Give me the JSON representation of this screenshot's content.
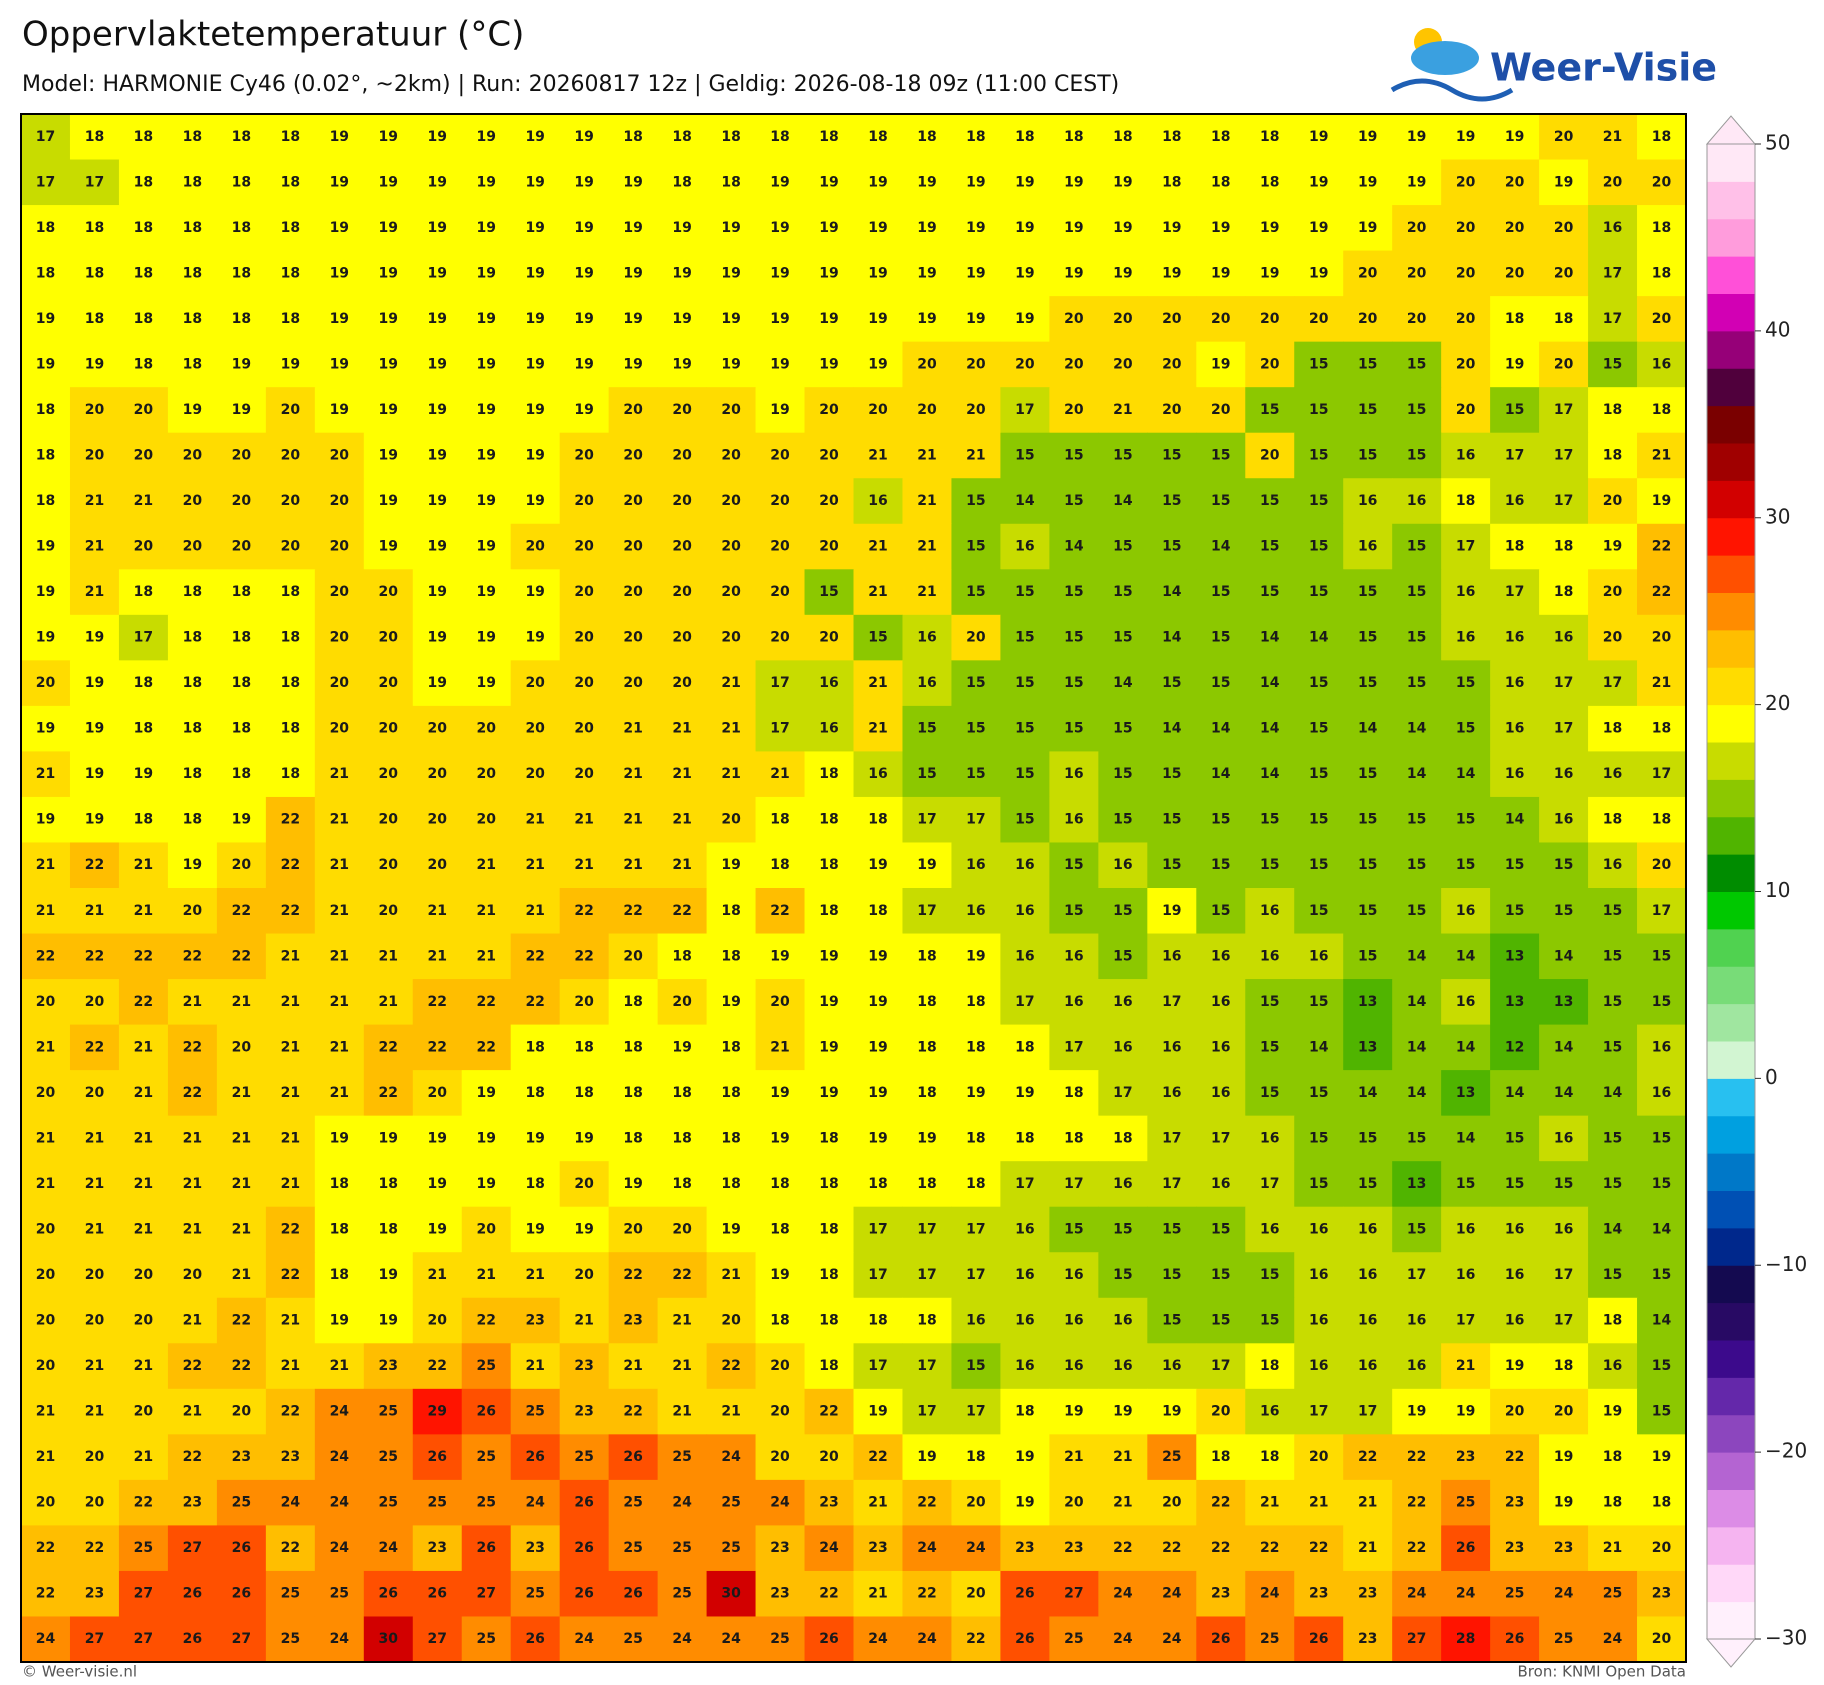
{
  "header": {
    "title": "Oppervlaktetemperatuur (°C)",
    "subtitle": "Model: HARMONIE Cy46 (0.02°, ~2km)  |  Run: 20260817 12z  |  Geldig: 2026-08-18 09z (11:00 CEST)",
    "logo": "Weer-Visie"
  },
  "map": {
    "values": [
      [
        17,
        18,
        18,
        18,
        18,
        18,
        19,
        19,
        19,
        19,
        19,
        19,
        18,
        18,
        18,
        18,
        18,
        18,
        18,
        18,
        18,
        18,
        18,
        18,
        18,
        18,
        19,
        19,
        19,
        19,
        19,
        20,
        21,
        18
      ],
      [
        17,
        17,
        18,
        18,
        18,
        18,
        19,
        19,
        19,
        19,
        19,
        19,
        19,
        18,
        18,
        19,
        19,
        19,
        19,
        19,
        19,
        19,
        19,
        18,
        18,
        18,
        19,
        19,
        19,
        20,
        20,
        19,
        20,
        20
      ],
      [
        18,
        18,
        18,
        18,
        18,
        18,
        19,
        19,
        19,
        19,
        19,
        19,
        19,
        19,
        19,
        19,
        19,
        19,
        19,
        19,
        19,
        19,
        19,
        19,
        19,
        19,
        19,
        19,
        20,
        20,
        20,
        20,
        16,
        18
      ],
      [
        18,
        18,
        18,
        18,
        18,
        18,
        19,
        19,
        19,
        19,
        19,
        19,
        19,
        19,
        19,
        19,
        19,
        19,
        19,
        19,
        19,
        19,
        19,
        19,
        19,
        19,
        19,
        20,
        20,
        20,
        20,
        20,
        17,
        18
      ],
      [
        19,
        18,
        18,
        18,
        18,
        18,
        19,
        19,
        19,
        19,
        19,
        19,
        19,
        19,
        19,
        19,
        19,
        19,
        19,
        19,
        19,
        20,
        20,
        20,
        20,
        20,
        20,
        20,
        20,
        20,
        18,
        18,
        17,
        20
      ],
      [
        19,
        19,
        18,
        18,
        19,
        19,
        19,
        19,
        19,
        19,
        19,
        19,
        19,
        19,
        19,
        19,
        19,
        19,
        20,
        20,
        20,
        20,
        20,
        20,
        19,
        20,
        15,
        15,
        15,
        20,
        19,
        20,
        15,
        16
      ],
      [
        18,
        20,
        20,
        19,
        19,
        20,
        19,
        19,
        19,
        19,
        19,
        19,
        20,
        20,
        20,
        19,
        20,
        20,
        20,
        20,
        17,
        20,
        21,
        20,
        20,
        15,
        15,
        15,
        15,
        20,
        15,
        17,
        18,
        18
      ],
      [
        18,
        20,
        20,
        20,
        20,
        20,
        20,
        19,
        19,
        19,
        19,
        20,
        20,
        20,
        20,
        20,
        20,
        21,
        21,
        21,
        15,
        15,
        15,
        15,
        15,
        20,
        15,
        15,
        15,
        16,
        17,
        17,
        18,
        21
      ],
      [
        18,
        21,
        21,
        20,
        20,
        20,
        20,
        19,
        19,
        19,
        19,
        20,
        20,
        20,
        20,
        20,
        20,
        16,
        21,
        15,
        14,
        15,
        14,
        15,
        15,
        15,
        15,
        16,
        16,
        18,
        16,
        17,
        20,
        19
      ],
      [
        19,
        21,
        20,
        20,
        20,
        20,
        20,
        19,
        19,
        19,
        20,
        20,
        20,
        20,
        20,
        20,
        20,
        21,
        21,
        15,
        16,
        14,
        15,
        15,
        14,
        15,
        15,
        16,
        15,
        17,
        18,
        18,
        19,
        22
      ],
      [
        19,
        21,
        18,
        18,
        18,
        18,
        20,
        20,
        19,
        19,
        19,
        20,
        20,
        20,
        20,
        20,
        15,
        21,
        21,
        15,
        15,
        15,
        15,
        14,
        15,
        15,
        15,
        15,
        15,
        16,
        17,
        18,
        20,
        22
      ],
      [
        19,
        19,
        17,
        18,
        18,
        18,
        20,
        20,
        19,
        19,
        19,
        20,
        20,
        20,
        20,
        20,
        20,
        15,
        16,
        20,
        15,
        15,
        15,
        14,
        15,
        14,
        14,
        15,
        15,
        16,
        16,
        16,
        20,
        20
      ],
      [
        20,
        19,
        18,
        18,
        18,
        18,
        20,
        20,
        19,
        19,
        20,
        20,
        20,
        20,
        21,
        17,
        16,
        21,
        16,
        15,
        15,
        15,
        14,
        15,
        15,
        14,
        15,
        15,
        15,
        15,
        16,
        17,
        17,
        21
      ],
      [
        19,
        19,
        18,
        18,
        18,
        18,
        20,
        20,
        20,
        20,
        20,
        20,
        21,
        21,
        21,
        17,
        16,
        21,
        15,
        15,
        15,
        15,
        15,
        14,
        14,
        14,
        15,
        14,
        14,
        15,
        16,
        17,
        18,
        18
      ],
      [
        21,
        19,
        19,
        18,
        18,
        18,
        21,
        20,
        20,
        20,
        20,
        20,
        21,
        21,
        21,
        21,
        18,
        16,
        15,
        15,
        15,
        16,
        15,
        15,
        14,
        14,
        15,
        15,
        14,
        14,
        16,
        16,
        16,
        17
      ],
      [
        19,
        19,
        18,
        18,
        19,
        22,
        21,
        20,
        20,
        20,
        21,
        21,
        21,
        21,
        20,
        18,
        18,
        18,
        17,
        17,
        15,
        16,
        15,
        15,
        15,
        15,
        15,
        15,
        15,
        15,
        14,
        16,
        18,
        18
      ],
      [
        21,
        22,
        21,
        19,
        20,
        22,
        21,
        20,
        20,
        21,
        21,
        21,
        21,
        21,
        19,
        18,
        18,
        19,
        19,
        16,
        16,
        15,
        16,
        15,
        15,
        15,
        15,
        15,
        15,
        15,
        15,
        15,
        16,
        20
      ],
      [
        21,
        21,
        21,
        20,
        22,
        22,
        21,
        20,
        21,
        21,
        21,
        22,
        22,
        22,
        18,
        22,
        18,
        18,
        17,
        16,
        16,
        15,
        15,
        19,
        15,
        16,
        15,
        15,
        15,
        16,
        15,
        15,
        15,
        17
      ],
      [
        22,
        22,
        22,
        22,
        22,
        21,
        21,
        21,
        21,
        21,
        22,
        22,
        20,
        18,
        18,
        19,
        19,
        19,
        18,
        19,
        16,
        16,
        15,
        16,
        16,
        16,
        16,
        15,
        14,
        14,
        13,
        14,
        15,
        15
      ],
      [
        20,
        20,
        22,
        21,
        21,
        21,
        21,
        21,
        22,
        22,
        22,
        20,
        18,
        20,
        19,
        20,
        19,
        19,
        18,
        18,
        17,
        16,
        16,
        17,
        16,
        15,
        15,
        13,
        14,
        16,
        13,
        13,
        15,
        15
      ],
      [
        21,
        22,
        21,
        22,
        20,
        21,
        21,
        22,
        22,
        22,
        18,
        18,
        18,
        19,
        18,
        21,
        19,
        19,
        18,
        18,
        18,
        17,
        16,
        16,
        16,
        15,
        14,
        13,
        14,
        14,
        12,
        14,
        15,
        16
      ],
      [
        20,
        20,
        21,
        22,
        21,
        21,
        21,
        22,
        20,
        19,
        18,
        18,
        18,
        18,
        18,
        19,
        19,
        19,
        18,
        19,
        19,
        18,
        17,
        16,
        16,
        15,
        15,
        14,
        14,
        13,
        14,
        14,
        14,
        16
      ],
      [
        21,
        21,
        21,
        21,
        21,
        21,
        19,
        19,
        19,
        19,
        19,
        19,
        18,
        18,
        18,
        19,
        18,
        19,
        19,
        18,
        18,
        18,
        18,
        17,
        17,
        16,
        15,
        15,
        15,
        14,
        15,
        16,
        15,
        15
      ],
      [
        21,
        21,
        21,
        21,
        21,
        21,
        18,
        18,
        19,
        19,
        18,
        20,
        19,
        18,
        18,
        18,
        18,
        18,
        18,
        18,
        17,
        17,
        16,
        17,
        16,
        17,
        15,
        15,
        13,
        15,
        15,
        15,
        15,
        15
      ],
      [
        20,
        21,
        21,
        21,
        21,
        22,
        18,
        18,
        19,
        20,
        19,
        19,
        20,
        20,
        19,
        18,
        18,
        17,
        17,
        17,
        16,
        15,
        15,
        15,
        15,
        16,
        16,
        16,
        15,
        16,
        16,
        16,
        14,
        14
      ],
      [
        20,
        20,
        20,
        20,
        21,
        22,
        18,
        19,
        21,
        21,
        21,
        20,
        22,
        22,
        21,
        19,
        18,
        17,
        17,
        17,
        16,
        16,
        15,
        15,
        15,
        15,
        16,
        16,
        17,
        16,
        16,
        17,
        15,
        15
      ],
      [
        20,
        20,
        20,
        21,
        22,
        21,
        19,
        19,
        20,
        22,
        23,
        21,
        23,
        21,
        20,
        18,
        18,
        18,
        18,
        16,
        16,
        16,
        16,
        15,
        15,
        15,
        16,
        16,
        16,
        17,
        16,
        17,
        18,
        14
      ],
      [
        20,
        21,
        21,
        22,
        22,
        21,
        21,
        23,
        22,
        25,
        21,
        23,
        21,
        21,
        22,
        20,
        18,
        17,
        17,
        15,
        16,
        16,
        16,
        16,
        17,
        18,
        16,
        16,
        16,
        21,
        19,
        18,
        16,
        15
      ],
      [
        21,
        21,
        20,
        21,
        20,
        22,
        24,
        25,
        29,
        26,
        25,
        23,
        22,
        21,
        21,
        20,
        22,
        19,
        17,
        17,
        18,
        19,
        19,
        19,
        20,
        16,
        17,
        17,
        19,
        19,
        20,
        20,
        19,
        15
      ],
      [
        21,
        20,
        21,
        22,
        23,
        23,
        24,
        25,
        26,
        25,
        26,
        25,
        26,
        25,
        24,
        20,
        20,
        22,
        19,
        18,
        19,
        21,
        21,
        25,
        18,
        18,
        20,
        22,
        22,
        23,
        22,
        19,
        18,
        19
      ],
      [
        20,
        20,
        22,
        23,
        25,
        24,
        24,
        25,
        25,
        25,
        24,
        26,
        25,
        24,
        25,
        24,
        23,
        21,
        22,
        20,
        19,
        20,
        21,
        20,
        22,
        21,
        21,
        21,
        22,
        25,
        23,
        19,
        18,
        18
      ],
      [
        22,
        22,
        25,
        27,
        26,
        22,
        24,
        24,
        23,
        26,
        23,
        26,
        25,
        25,
        25,
        23,
        24,
        23,
        24,
        24,
        23,
        23,
        22,
        22,
        22,
        22,
        22,
        21,
        22,
        26,
        23,
        23,
        21,
        20
      ],
      [
        22,
        23,
        27,
        26,
        26,
        25,
        25,
        26,
        26,
        27,
        25,
        26,
        26,
        25,
        30,
        23,
        22,
        21,
        22,
        20,
        26,
        27,
        24,
        24,
        23,
        24,
        23,
        23,
        24,
        24,
        25,
        24,
        25,
        23
      ],
      [
        24,
        27,
        27,
        26,
        27,
        25,
        24,
        30,
        27,
        25,
        26,
        24,
        25,
        24,
        24,
        25,
        26,
        24,
        24,
        22,
        26,
        25,
        24,
        24,
        26,
        25,
        26,
        23,
        27,
        28,
        26,
        25,
        24,
        20
      ]
    ]
  },
  "colorbar": {
    "lim": [
      -30,
      50
    ],
    "ticks": [
      {
        "value": -30,
        "label": "−30"
      },
      {
        "value": -20,
        "label": "−20"
      },
      {
        "value": -10,
        "label": "−10"
      },
      0,
      10,
      20,
      30,
      40,
      50
    ],
    "colors": [
      "#fff0fc",
      "#ffd8f8",
      "#f5b4f0",
      "#dc8ce6",
      "#b464d2",
      "#8c46be",
      "#6428aa",
      "#3c0a8c",
      "#280a64",
      "#140a50",
      "#00288c",
      "#0050b4",
      "#0078c8",
      "#00a0e0",
      "#28c0f0",
      "#d2f5d2",
      "#a0e6a0",
      "#78dc78",
      "#50d250",
      "#00c800",
      "#008c00",
      "#50b400",
      "#8cc800",
      "#c8dc00",
      "#ffff00",
      "#ffdc00",
      "#ffbe00",
      "#ff8c00",
      "#ff5000",
      "#ff1400",
      "#d20000",
      "#a00000",
      "#7a0000",
      "#50003c",
      "#960078",
      "#d200b4",
      "#ff50d8",
      "#ff9cdc",
      "#ffc0e8",
      "#ffe8f6"
    ]
  },
  "footer": {
    "left": "© Weer-visie.nl",
    "right": "Bron: KNMI Open Data"
  }
}
